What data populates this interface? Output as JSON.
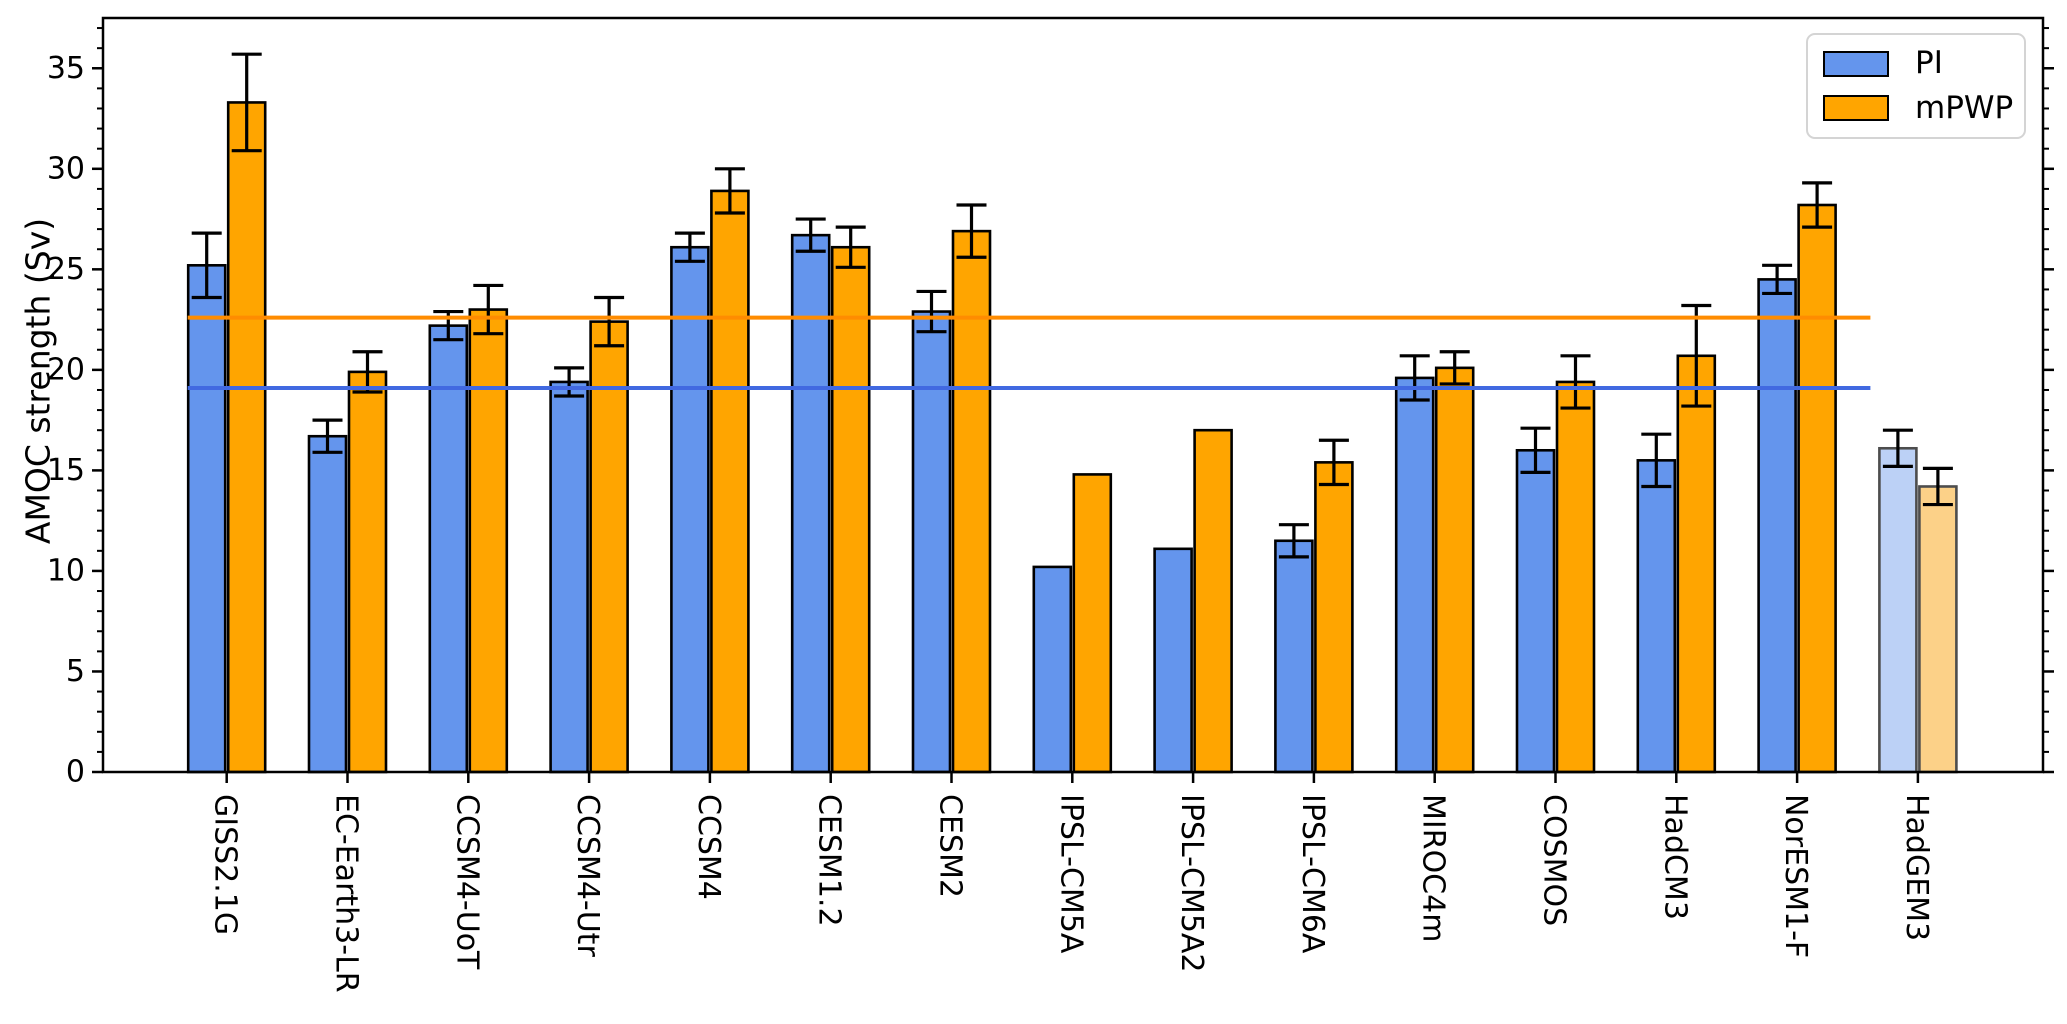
{
  "chart_data": {
    "type": "bar",
    "title": "",
    "xlabel": "",
    "ylabel": "AMOC strength (Sv)",
    "ylim": [
      0,
      37.5
    ],
    "yticks": [
      0,
      5,
      10,
      15,
      20,
      25,
      30,
      35
    ],
    "y_minor_step": 1,
    "grid": false,
    "legend_position": "top-right",
    "categories": [
      "GISS2.1G",
      "EC-Earth3-LR",
      "CCSM4-UoT",
      "CCSM4-Utr",
      "CCSM4",
      "CESM1.2",
      "CESM2",
      "IPSL-CM5A",
      "IPSL-CM5A2",
      "IPSL-CM6A",
      "MIROC4m",
      "COSMOS",
      "HadCM3",
      "NorESM1-F",
      "HadGEM3"
    ],
    "series": [
      {
        "name": "PI",
        "color": "#6495ED",
        "values": [
          25.2,
          16.7,
          22.2,
          19.4,
          26.1,
          26.7,
          22.9,
          10.2,
          11.1,
          11.5,
          19.6,
          16.0,
          15.5,
          24.5,
          16.1
        ],
        "errors": [
          1.6,
          0.8,
          0.7,
          0.7,
          0.7,
          0.8,
          1.0,
          0,
          0,
          0.8,
          1.1,
          1.1,
          1.3,
          0.7,
          0.9
        ]
      },
      {
        "name": "mPWP",
        "color": "#FFA500",
        "values": [
          33.3,
          19.9,
          23.0,
          22.4,
          28.9,
          26.1,
          26.9,
          14.8,
          17.0,
          15.4,
          20.1,
          19.4,
          20.7,
          28.2,
          14.2
        ],
        "errors": [
          2.4,
          1.0,
          1.2,
          1.2,
          1.1,
          1.0,
          1.3,
          0,
          0,
          1.1,
          0.8,
          1.3,
          2.5,
          1.1,
          0.9
        ]
      }
    ],
    "faded_categories": [
      "HadGEM3"
    ],
    "faded_colors": {
      "PI": "#BCD1F6",
      "mPWP": "#FCD188"
    },
    "faded_edge_color": "#4D4D4D",
    "bar_edge_color": "#000000",
    "reference_lines": [
      {
        "name": "pi-mean-line",
        "value": 19.1,
        "color": "#4169E1"
      },
      {
        "name": "mpwp-mean-line",
        "value": 22.6,
        "color": "#FF8C00"
      }
    ],
    "legend": {
      "entries": [
        {
          "label": "PI",
          "color": "#6495ED"
        },
        {
          "label": "mPWP",
          "color": "#FFA500"
        }
      ]
    }
  }
}
